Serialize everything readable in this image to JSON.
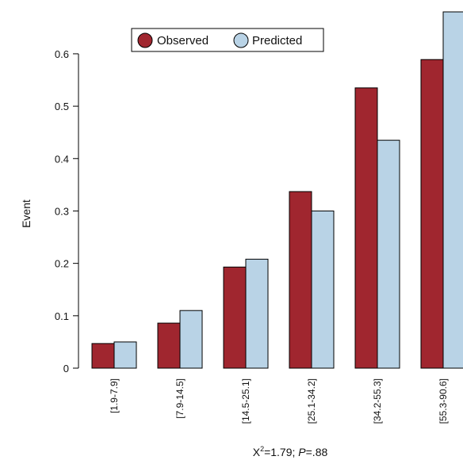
{
  "chart_data": {
    "type": "bar",
    "title": "",
    "xlabel": "",
    "ylabel": "Event",
    "ylim": [
      0,
      0.68
    ],
    "yticks": [
      "0",
      "0.1",
      "0.2",
      "0.3",
      "0.4",
      "0.5",
      "0.6"
    ],
    "categories": [
      "[1.9-7.9]",
      "[7.9-14.5]",
      "[14.5-25.1]",
      "[25.1-34.2]",
      "[34.2-55.3]",
      "[55.3-90.6]"
    ],
    "series": [
      {
        "name": "Observed",
        "color": "#a0262f",
        "values": [
          0.047,
          0.086,
          0.193,
          0.337,
          0.535,
          0.589
        ]
      },
      {
        "name": "Predicted",
        "color": "#b9d3e6",
        "values": [
          0.05,
          0.11,
          0.208,
          0.3,
          0.435,
          0.68
        ]
      }
    ],
    "legend": {
      "position": "top-center",
      "marker": "circle"
    },
    "grid": false,
    "annotation": {
      "chi_prefix": "X",
      "chi_superscript": "2",
      "chi_rest": "=1.79; ",
      "p_symbol": "P",
      "p_rest": "=.88"
    }
  }
}
